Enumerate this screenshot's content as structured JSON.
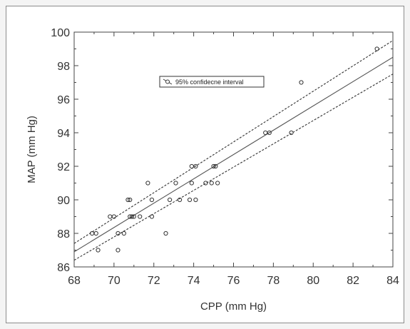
{
  "chart_data": {
    "type": "scatter",
    "title": "",
    "xlabel": "CPP (mm Hg)",
    "ylabel": "MAP (mm Hg)",
    "xlim": [
      68,
      84
    ],
    "ylim": [
      86,
      100
    ],
    "x_ticks": [
      68,
      70,
      72,
      74,
      76,
      78,
      80,
      82,
      84
    ],
    "y_ticks": [
      86,
      88,
      90,
      92,
      94,
      96,
      98,
      100
    ],
    "grid": false,
    "legend": {
      "label": "95% confidecne interval",
      "placement": "upper-center"
    },
    "points": [
      {
        "x": 68.9,
        "y": 88
      },
      {
        "x": 69.1,
        "y": 88
      },
      {
        "x": 69.2,
        "y": 87
      },
      {
        "x": 69.8,
        "y": 89
      },
      {
        "x": 70.0,
        "y": 89
      },
      {
        "x": 70.2,
        "y": 88
      },
      {
        "x": 70.2,
        "y": 87
      },
      {
        "x": 70.5,
        "y": 88
      },
      {
        "x": 70.7,
        "y": 90
      },
      {
        "x": 70.8,
        "y": 90
      },
      {
        "x": 70.8,
        "y": 89
      },
      {
        "x": 70.9,
        "y": 89
      },
      {
        "x": 71.0,
        "y": 89
      },
      {
        "x": 71.3,
        "y": 89
      },
      {
        "x": 71.7,
        "y": 91
      },
      {
        "x": 71.9,
        "y": 90
      },
      {
        "x": 71.9,
        "y": 89
      },
      {
        "x": 72.6,
        "y": 88
      },
      {
        "x": 72.8,
        "y": 90
      },
      {
        "x": 73.1,
        "y": 91
      },
      {
        "x": 73.3,
        "y": 90
      },
      {
        "x": 73.8,
        "y": 90
      },
      {
        "x": 73.9,
        "y": 91
      },
      {
        "x": 73.9,
        "y": 92
      },
      {
        "x": 74.1,
        "y": 92
      },
      {
        "x": 74.1,
        "y": 90
      },
      {
        "x": 74.6,
        "y": 91
      },
      {
        "x": 74.9,
        "y": 91
      },
      {
        "x": 75.0,
        "y": 92
      },
      {
        "x": 75.1,
        "y": 92
      },
      {
        "x": 75.2,
        "y": 91
      },
      {
        "x": 77.6,
        "y": 94
      },
      {
        "x": 77.8,
        "y": 94
      },
      {
        "x": 78.9,
        "y": 94
      },
      {
        "x": 79.4,
        "y": 97
      },
      {
        "x": 83.2,
        "y": 99
      }
    ],
    "regression_line": {
      "x": [
        68,
        84
      ],
      "y": [
        86.9,
        98.5
      ]
    },
    "confidence_upper": {
      "x": [
        68,
        84
      ],
      "y": [
        87.4,
        99.5
      ]
    },
    "confidence_lower": {
      "x": [
        68,
        84
      ],
      "y": [
        86.4,
        97.5
      ]
    },
    "colors": {
      "axis": "#444444",
      "markers": "#333333",
      "regression": "#555555",
      "confidence": "#333333"
    }
  }
}
